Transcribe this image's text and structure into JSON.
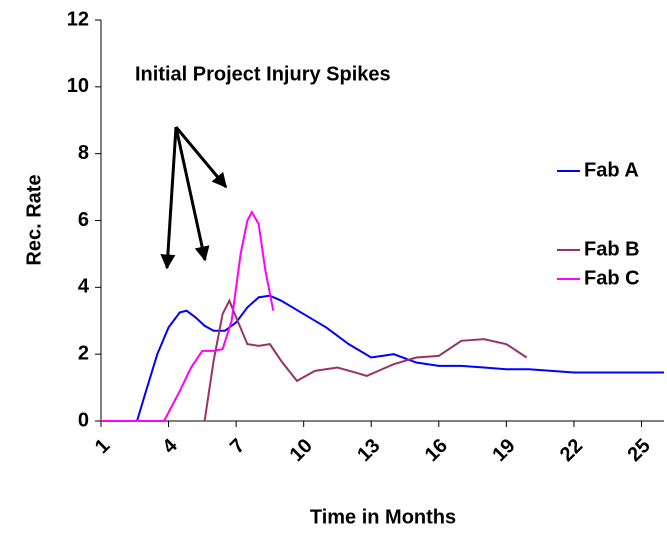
{
  "chart_data": {
    "type": "line",
    "title": "Initial Project Injury Spikes",
    "xlabel": "Time in Months",
    "ylabel": "Rec. Rate",
    "xlim": [
      1,
      26
    ],
    "xticks": [
      1,
      4,
      7,
      10,
      13,
      16,
      19,
      22,
      25
    ],
    "ylim": [
      0,
      12
    ],
    "yticks": [
      0,
      2,
      4,
      6,
      8,
      10,
      12
    ],
    "legend": "right",
    "series": [
      {
        "name": "Fab A",
        "color": "#0000ff",
        "x": [
          1,
          2,
          2.6,
          3,
          3.5,
          4,
          4.5,
          4.8,
          5.2,
          5.6,
          6,
          6.5,
          7,
          7.5,
          8,
          8.5,
          9,
          10,
          11,
          12,
          13,
          13.5,
          14,
          15,
          16,
          17,
          18,
          19,
          20,
          21,
          22,
          23,
          24,
          25,
          26
        ],
        "values": [
          0,
          0,
          0,
          0.9,
          2.0,
          2.8,
          3.25,
          3.3,
          3.1,
          2.85,
          2.7,
          2.7,
          2.95,
          3.4,
          3.7,
          3.75,
          3.6,
          3.2,
          2.8,
          2.3,
          1.9,
          1.95,
          2.0,
          1.75,
          1.65,
          1.65,
          1.6,
          1.55,
          1.55,
          1.5,
          1.45,
          1.45,
          1.45,
          1.45,
          1.45
        ]
      },
      {
        "name": "Fab B",
        "color": "#993366",
        "x": [
          5.6,
          6,
          6.4,
          6.7,
          7,
          7.5,
          8,
          8.5,
          9,
          9.7,
          10.5,
          11.5,
          12.3,
          12.8,
          14,
          15,
          16,
          17,
          18,
          19,
          19.9
        ],
        "values": [
          0,
          1.8,
          3.2,
          3.6,
          3.1,
          2.3,
          2.25,
          2.3,
          1.8,
          1.2,
          1.5,
          1.6,
          1.45,
          1.35,
          1.7,
          1.9,
          1.95,
          2.4,
          2.45,
          2.3,
          1.9
        ]
      },
      {
        "name": "Fab C",
        "color": "#ff00ff",
        "x": [
          1,
          2,
          3,
          3.8,
          4.5,
          5,
          5.5,
          6,
          6.4,
          6.8,
          7.2,
          7.5,
          7.7,
          8,
          8.3,
          8.65
        ],
        "values": [
          0,
          0,
          0,
          0,
          0.9,
          1.6,
          2.1,
          2.1,
          2.15,
          3.0,
          5.0,
          6.0,
          6.25,
          5.9,
          4.5,
          3.3
        ]
      }
    ]
  }
}
